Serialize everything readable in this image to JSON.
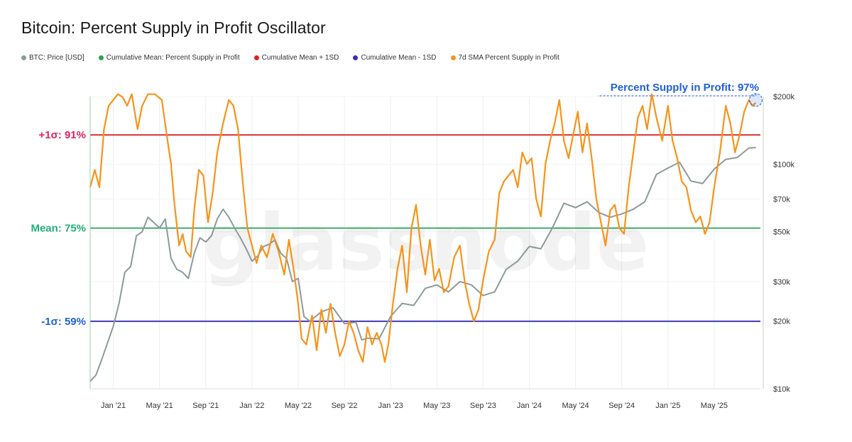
{
  "chart_data": {
    "type": "line",
    "title": "Bitcoin: Percent Supply in Profit Oscillator",
    "watermark": "glassnode",
    "x_tick_labels": [
      "Jan '21",
      "May '21",
      "Sep '21",
      "Jan '22",
      "May '22",
      "Sep '22",
      "Jan '23",
      "May '23",
      "Sep '23",
      "Jan '24",
      "May '24",
      "Sep '24",
      "Jan '25",
      "May '25"
    ],
    "x_tick_months": [
      2,
      6,
      10,
      14,
      18,
      22,
      26,
      30,
      34,
      38,
      42,
      46,
      50,
      54
    ],
    "x_range_months": [
      0,
      58
    ],
    "y_left_pct_range": [
      47.4,
      97.6
    ],
    "y_right_price_range_log": [
      10000,
      200000
    ],
    "y_right_tick_labels": [
      "$10k",
      "$20k",
      "$30k",
      "$50k",
      "$70k",
      "$100k",
      "$200k"
    ],
    "y_right_tick_values": [
      10000,
      20000,
      30000,
      50000,
      70000,
      100000,
      200000
    ],
    "levels": [
      {
        "name": "plus_1sd",
        "label": "+1σ: 91%",
        "value": 91,
        "color": "#d62728"
      },
      {
        "name": "mean",
        "label": "Mean: 75%",
        "value": 75,
        "color": "#2ca05a"
      },
      {
        "name": "minus_1sd",
        "label": "-1σ: 59%",
        "value": 59,
        "color": "#3a2db3"
      }
    ],
    "annotation": {
      "label": "Percent Supply in Profit: 97%",
      "value": 97,
      "month": 57.6
    },
    "series": [
      {
        "name": "BTC: Price [USD]",
        "color": "#8c9a9b",
        "axis": "right",
        "points": [
          [
            0,
            10800
          ],
          [
            0.5,
            11500
          ],
          [
            1,
            13500
          ],
          [
            1.5,
            16000
          ],
          [
            2,
            19000
          ],
          [
            2.5,
            24000
          ],
          [
            3,
            33000
          ],
          [
            3.5,
            35000
          ],
          [
            4,
            48000
          ],
          [
            4.5,
            50000
          ],
          [
            5,
            58000
          ],
          [
            5.5,
            55000
          ],
          [
            6,
            52000
          ],
          [
            6.5,
            57000
          ],
          [
            7,
            38000
          ],
          [
            7.5,
            34000
          ],
          [
            8,
            33000
          ],
          [
            8.5,
            31000
          ],
          [
            9,
            40000
          ],
          [
            9.5,
            47000
          ],
          [
            10,
            45000
          ],
          [
            10.5,
            48000
          ],
          [
            11,
            57000
          ],
          [
            11.5,
            63000
          ],
          [
            12,
            58000
          ],
          [
            12.5,
            52000
          ],
          [
            13,
            47000
          ],
          [
            13.5,
            42000
          ],
          [
            14,
            37000
          ],
          [
            14.5,
            39000
          ],
          [
            15,
            43000
          ],
          [
            15.5,
            44000
          ],
          [
            16,
            46000
          ],
          [
            16.5,
            40000
          ],
          [
            17,
            38000
          ],
          [
            17.5,
            30000
          ],
          [
            18,
            31000
          ],
          [
            18.5,
            21000
          ],
          [
            19,
            20000
          ],
          [
            20,
            22000
          ],
          [
            21,
            23000
          ],
          [
            22,
            19500
          ],
          [
            23,
            19800
          ],
          [
            23.5,
            16500
          ],
          [
            24,
            16800
          ],
          [
            25,
            16700
          ],
          [
            26,
            21000
          ],
          [
            27,
            24000
          ],
          [
            28,
            23500
          ],
          [
            29,
            28000
          ],
          [
            30,
            29000
          ],
          [
            31,
            27000
          ],
          [
            32,
            30000
          ],
          [
            33,
            29000
          ],
          [
            34,
            26000
          ],
          [
            35,
            27000
          ],
          [
            36,
            34000
          ],
          [
            37,
            37000
          ],
          [
            38,
            43000
          ],
          [
            39,
            42000
          ],
          [
            40,
            52000
          ],
          [
            41,
            67000
          ],
          [
            42,
            64000
          ],
          [
            43,
            68000
          ],
          [
            44,
            61000
          ],
          [
            45,
            58000
          ],
          [
            46,
            60000
          ],
          [
            47,
            63000
          ],
          [
            48,
            68000
          ],
          [
            49,
            90000
          ],
          [
            50,
            96000
          ],
          [
            51,
            102000
          ],
          [
            52,
            84000
          ],
          [
            53,
            82000
          ],
          [
            54,
            95000
          ],
          [
            55,
            105000
          ],
          [
            56,
            107000
          ],
          [
            57,
            118000
          ],
          [
            57.6,
            118500
          ]
        ]
      },
      {
        "name": "7d SMA Percent Supply in Profit",
        "color": "#f7931a",
        "axis": "left",
        "points": [
          [
            0,
            82
          ],
          [
            0.4,
            85
          ],
          [
            0.8,
            82
          ],
          [
            1.2,
            92
          ],
          [
            1.6,
            96
          ],
          [
            2,
            97
          ],
          [
            2.4,
            98
          ],
          [
            2.8,
            97.5
          ],
          [
            3.2,
            96
          ],
          [
            3.6,
            98
          ],
          [
            4.1,
            92
          ],
          [
            4.5,
            96
          ],
          [
            5,
            98
          ],
          [
            5.6,
            98
          ],
          [
            6.2,
            97
          ],
          [
            6.7,
            90
          ],
          [
            7,
            86
          ],
          [
            7.3,
            79
          ],
          [
            7.7,
            72
          ],
          [
            8,
            74
          ],
          [
            8.3,
            71
          ],
          [
            8.7,
            70
          ],
          [
            9,
            78
          ],
          [
            9.4,
            85
          ],
          [
            9.8,
            84
          ],
          [
            10.2,
            76
          ],
          [
            10.6,
            81
          ],
          [
            11,
            88
          ],
          [
            11.5,
            93
          ],
          [
            12,
            97
          ],
          [
            12.4,
            96
          ],
          [
            12.8,
            92
          ],
          [
            13.2,
            83
          ],
          [
            13.6,
            75
          ],
          [
            14,
            72
          ],
          [
            14.4,
            69
          ],
          [
            14.8,
            72
          ],
          [
            15.3,
            70
          ],
          [
            15.8,
            74
          ],
          [
            16.3,
            71
          ],
          [
            16.8,
            67
          ],
          [
            17.2,
            73
          ],
          [
            17.6,
            68
          ],
          [
            18,
            62
          ],
          [
            18.3,
            56
          ],
          [
            18.7,
            55
          ],
          [
            19.2,
            60
          ],
          [
            19.6,
            54
          ],
          [
            20,
            61
          ],
          [
            20.4,
            57
          ],
          [
            20.8,
            62
          ],
          [
            21.2,
            57
          ],
          [
            21.6,
            53
          ],
          [
            22,
            55
          ],
          [
            22.4,
            59
          ],
          [
            22.8,
            57
          ],
          [
            23.2,
            54
          ],
          [
            23.6,
            52
          ],
          [
            24,
            58
          ],
          [
            24.4,
            55
          ],
          [
            24.8,
            57
          ],
          [
            25.2,
            55
          ],
          [
            25.5,
            52
          ],
          [
            25.8,
            55
          ],
          [
            26.2,
            62
          ],
          [
            26.6,
            68
          ],
          [
            27,
            72
          ],
          [
            27.4,
            64
          ],
          [
            27.8,
            75
          ],
          [
            28.2,
            79
          ],
          [
            28.6,
            72
          ],
          [
            29,
            67
          ],
          [
            29.4,
            73
          ],
          [
            29.8,
            66
          ],
          [
            30.2,
            68
          ],
          [
            30.6,
            64
          ],
          [
            31,
            65
          ],
          [
            31.5,
            70
          ],
          [
            32,
            72
          ],
          [
            32.4,
            66
          ],
          [
            32.8,
            62
          ],
          [
            33.2,
            59
          ],
          [
            33.6,
            61
          ],
          [
            34,
            66
          ],
          [
            34.5,
            71
          ],
          [
            35,
            73
          ],
          [
            35.4,
            81
          ],
          [
            35.8,
            83
          ],
          [
            36.2,
            84
          ],
          [
            36.6,
            85
          ],
          [
            37,
            82
          ],
          [
            37.4,
            88
          ],
          [
            37.8,
            86
          ],
          [
            38.2,
            87
          ],
          [
            38.6,
            80
          ],
          [
            39,
            77
          ],
          [
            39.4,
            86
          ],
          [
            39.8,
            90
          ],
          [
            40.2,
            93
          ],
          [
            40.6,
            97
          ],
          [
            41,
            90
          ],
          [
            41.4,
            87
          ],
          [
            41.8,
            91
          ],
          [
            42.2,
            95
          ],
          [
            42.6,
            88
          ],
          [
            43,
            93
          ],
          [
            43.4,
            87
          ],
          [
            43.8,
            80
          ],
          [
            44.2,
            76
          ],
          [
            44.6,
            72
          ],
          [
            45,
            78
          ],
          [
            45.4,
            79
          ],
          [
            45.8,
            75
          ],
          [
            46.2,
            74
          ],
          [
            46.6,
            82
          ],
          [
            47,
            88
          ],
          [
            47.4,
            94
          ],
          [
            47.8,
            96
          ],
          [
            48.2,
            92
          ],
          [
            48.6,
            98
          ],
          [
            49,
            94
          ],
          [
            49.5,
            90
          ],
          [
            50,
            96
          ],
          [
            50.4,
            90
          ],
          [
            50.8,
            87
          ],
          [
            51.2,
            83
          ],
          [
            51.6,
            82
          ],
          [
            52,
            78
          ],
          [
            52.4,
            76
          ],
          [
            52.8,
            77
          ],
          [
            53.2,
            74
          ],
          [
            53.6,
            76
          ],
          [
            54,
            82
          ],
          [
            54.5,
            88
          ],
          [
            55,
            96
          ],
          [
            55.4,
            93
          ],
          [
            55.8,
            88
          ],
          [
            56.2,
            91
          ],
          [
            56.6,
            95
          ],
          [
            57,
            97
          ],
          [
            57.3,
            96
          ],
          [
            57.6,
            96.5
          ]
        ]
      }
    ],
    "legend": [
      {
        "label": "BTC: Price [USD]",
        "color": "#8c9a9b"
      },
      {
        "label": "Cumulative Mean: Percent Supply in Profit",
        "color": "#2ca05a"
      },
      {
        "label": "Cumulative Mean + 1SD",
        "color": "#d62728"
      },
      {
        "label": "Cumulative Mean - 1SD",
        "color": "#3a2db3"
      },
      {
        "label": "7d SMA Percent Supply in Profit",
        "color": "#f7931a"
      }
    ]
  }
}
